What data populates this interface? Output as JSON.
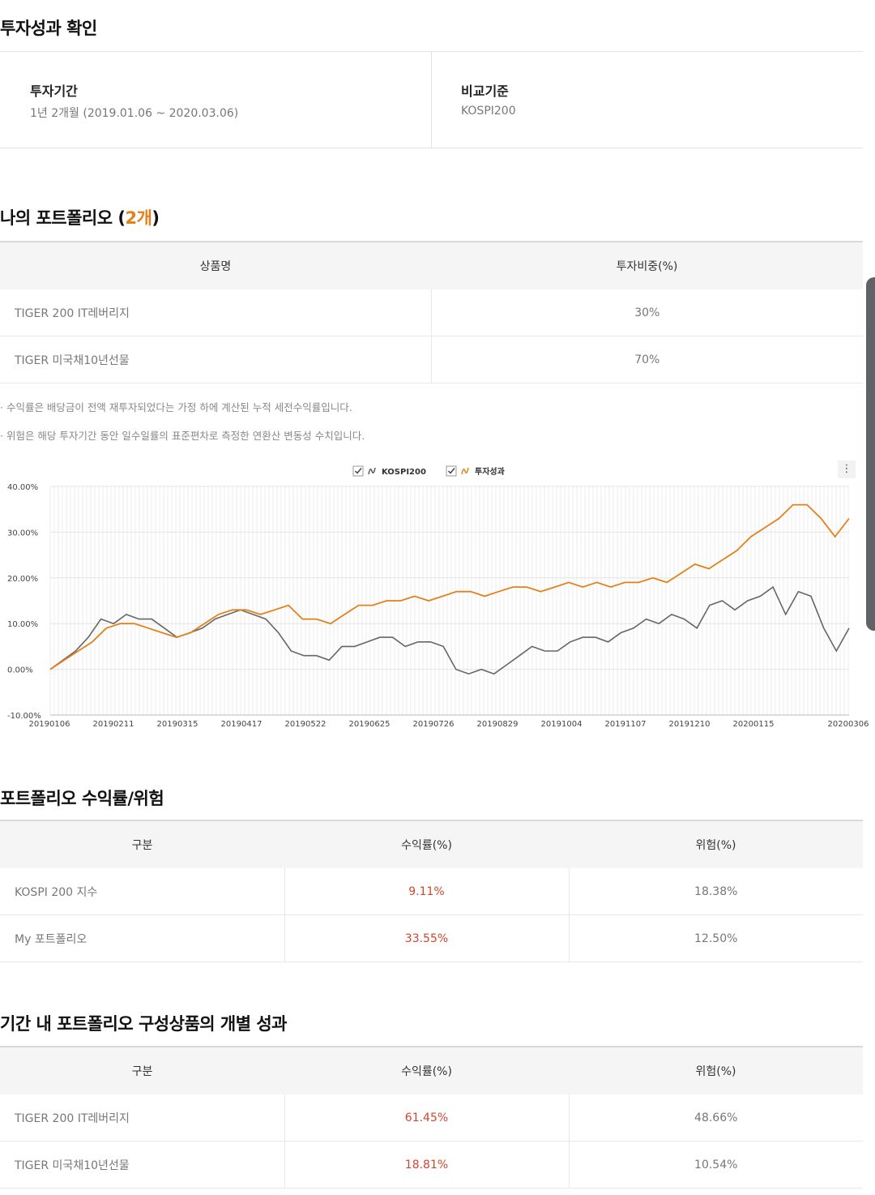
{
  "section1": {
    "title": "투자성과 확인",
    "period_label": "투자기간",
    "period_value": "1년 2개월 (2019.01.06 ~ 2020.03.06)",
    "benchmark_label": "비교기준",
    "benchmark_value": "KOSPI200"
  },
  "portfolio": {
    "title_prefix": "나의 포트폴리오 (",
    "count": "2개",
    "title_suffix": ")",
    "headers": [
      "상품명",
      "투자비중(%)"
    ],
    "rows": [
      {
        "name": "TIGER 200 IT레버리지",
        "weight": "30%"
      },
      {
        "name": "TIGER 미국채10년선물",
        "weight": "70%"
      }
    ],
    "notes": [
      "· 수익률은 배당금이 전액 재투자되었다는 가정 하에 계산된 누적 세전수익률입니다.",
      "· 위험은 해당 투자기간 동안 일수일률의 표준편차로 측정한 연환산 변동성 수치입니다."
    ]
  },
  "chart_data": {
    "type": "line",
    "legend": [
      "KOSPI200",
      "투자성과"
    ],
    "legend_placement": "top-center",
    "grid": true,
    "ylim": [
      -10,
      40
    ],
    "yticks": [
      "40.00%",
      "30.00%",
      "20.00%",
      "10.00%",
      "0.00%",
      "-10.00%"
    ],
    "xticks": [
      "20190106",
      "20190211",
      "20190315",
      "20190417",
      "20190522",
      "20190625",
      "20190726",
      "20190829",
      "20191004",
      "20191107",
      "20191210",
      "20200115",
      "20200306"
    ],
    "colors": {
      "kospi": "#666666",
      "portfolio": "#e3811a"
    },
    "series": [
      {
        "name": "KOSPI200",
        "values": [
          0,
          2,
          4,
          7,
          11,
          10,
          12,
          11,
          11,
          9,
          7,
          8,
          9,
          11,
          12,
          13,
          12,
          11,
          8,
          4,
          3,
          3,
          2,
          5,
          5,
          6,
          7,
          7,
          5,
          6,
          6,
          5,
          0,
          -1,
          0,
          -1,
          1,
          3,
          5,
          4,
          4,
          6,
          7,
          7,
          6,
          8,
          9,
          11,
          10,
          12,
          11,
          9,
          14,
          15,
          13,
          15,
          16,
          18,
          12,
          17,
          16,
          9,
          4,
          9
        ]
      },
      {
        "name": "투자성과",
        "values": [
          0,
          2,
          4,
          6,
          9,
          10,
          10,
          9,
          8,
          7,
          8,
          10,
          12,
          13,
          13,
          12,
          13,
          14,
          11,
          11,
          10,
          12,
          14,
          14,
          15,
          15,
          16,
          15,
          16,
          17,
          17,
          16,
          17,
          18,
          18,
          17,
          18,
          19,
          18,
          19,
          18,
          19,
          19,
          20,
          19,
          21,
          23,
          22,
          24,
          26,
          29,
          31,
          33,
          36,
          36,
          33,
          29,
          33
        ]
      }
    ]
  },
  "performance": {
    "title": "포트폴리오 수익률/위험",
    "headers": [
      "구분",
      "수익률(%)",
      "위험(%)"
    ],
    "rows": [
      {
        "name": "KOSPI 200 지수",
        "return": "9.11%",
        "risk": "18.38%"
      },
      {
        "name": "My 포트폴리오",
        "return": "33.55%",
        "risk": "12.50%"
      }
    ]
  },
  "individual": {
    "title": "기간 내 포트폴리오 구성상품의 개별 성과",
    "headers": [
      "구분",
      "수익률(%)",
      "위험(%)"
    ],
    "rows": [
      {
        "name": "TIGER 200 IT레버리지",
        "return": "61.45%",
        "risk": "48.66%"
      },
      {
        "name": "TIGER 미국채10년선물",
        "return": "18.81%",
        "risk": "10.54%"
      }
    ]
  },
  "menu_icon": "kebab-menu-icon"
}
